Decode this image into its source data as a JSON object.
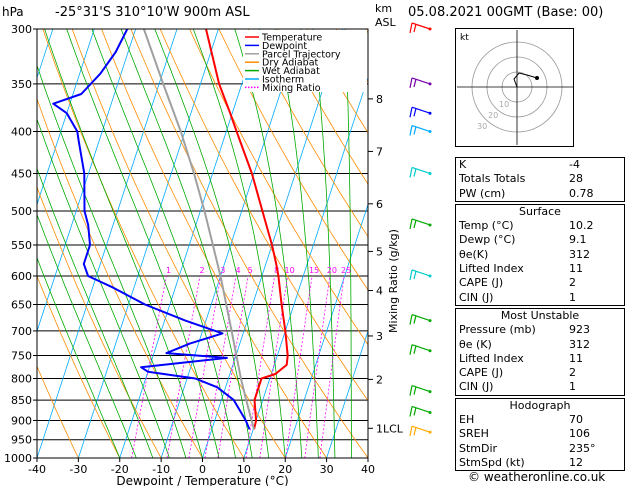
{
  "header": {
    "hpa_label": "hPa",
    "location": "-25°31'S 310°10'W 900m ASL",
    "km_label": "km",
    "asl_label": "ASL",
    "datetime": "05.08.2021 00GMT (Base: 00)"
  },
  "chart_data": {
    "type": "skew-t",
    "xlabel": "Dewpoint / Temperature (°C)",
    "ylabel": "hPa",
    "mixing_ratio_axis_label": "Mixing Ratio (g/kg)",
    "x_ticks": [
      -40,
      -30,
      -20,
      -10,
      0,
      10,
      20,
      30,
      40
    ],
    "xlim": [
      -40,
      40
    ],
    "pressure_levels": [
      300,
      350,
      400,
      450,
      500,
      550,
      600,
      650,
      700,
      750,
      800,
      850,
      900,
      950,
      1000
    ],
    "ylim": [
      300,
      1000
    ],
    "km_ticks": [
      {
        "label": "8",
        "p": 365
      },
      {
        "label": "7",
        "p": 423
      },
      {
        "label": "6",
        "p": 490
      },
      {
        "label": "5",
        "p": 560
      },
      {
        "label": "4",
        "p": 625
      },
      {
        "label": "3",
        "p": 710
      },
      {
        "label": "2",
        "p": 802
      },
      {
        "label": "1LCL",
        "p": 920
      }
    ],
    "mixing_ratio_labels": [
      "1",
      "2",
      "3",
      "4",
      "5",
      "8",
      "10",
      "15",
      "20",
      "25"
    ],
    "mixing_ratio_values": [
      1,
      2,
      3,
      4,
      5,
      8,
      10,
      15,
      20,
      25
    ],
    "legend": [
      {
        "label": "Temperature",
        "color": "#ff0000",
        "style": "solid"
      },
      {
        "label": "Dewpoint",
        "color": "#0000ff",
        "style": "solid"
      },
      {
        "label": "Parcel Trajectory",
        "color": "#a0a0a0",
        "style": "solid"
      },
      {
        "label": "Dry Adiabat",
        "color": "#ff8c00",
        "style": "solid"
      },
      {
        "label": "Wet Adiabat",
        "color": "#00aa00",
        "style": "solid"
      },
      {
        "label": "Isotherm",
        "color": "#00aaff",
        "style": "solid"
      },
      {
        "label": "Mixing Ratio",
        "color": "#ff00ff",
        "style": "dotted"
      }
    ],
    "series": [
      {
        "name": "Temperature",
        "color": "#ff0000",
        "points": [
          [
            923,
            10.2
          ],
          [
            900,
            10.0
          ],
          [
            850,
            8.0
          ],
          [
            800,
            8.0
          ],
          [
            790,
            11.0
          ],
          [
            770,
            13.0
          ],
          [
            750,
            12.5
          ],
          [
            700,
            10.0
          ],
          [
            650,
            7.0
          ],
          [
            600,
            4.0
          ],
          [
            580,
            2.5
          ],
          [
            550,
            0.0
          ],
          [
            500,
            -5.0
          ],
          [
            450,
            -10.5
          ],
          [
            400,
            -17.5
          ],
          [
            380,
            -20.5
          ],
          [
            350,
            -25.5
          ],
          [
            300,
            -33.0
          ]
        ]
      },
      {
        "name": "Dewpoint",
        "color": "#0000ff",
        "points": [
          [
            923,
            9.1
          ],
          [
            900,
            7.5
          ],
          [
            850,
            3.0
          ],
          [
            820,
            -2.0
          ],
          [
            800,
            -8.0
          ],
          [
            785,
            -20.0
          ],
          [
            775,
            -22.0
          ],
          [
            755,
            -2.0
          ],
          [
            745,
            -17.0
          ],
          [
            725,
            -12.0
          ],
          [
            705,
            -5.0
          ],
          [
            680,
            -15.0
          ],
          [
            650,
            -26.0
          ],
          [
            620,
            -35.0
          ],
          [
            600,
            -42.0
          ],
          [
            580,
            -44.0
          ],
          [
            550,
            -44.0
          ],
          [
            520,
            -46.0
          ],
          [
            500,
            -48.0
          ],
          [
            450,
            -51.0
          ],
          [
            410,
            -55.0
          ],
          [
            400,
            -56.0
          ],
          [
            380,
            -60.0
          ],
          [
            370,
            -64.0
          ],
          [
            360,
            -58.0
          ],
          [
            340,
            -55.0
          ],
          [
            320,
            -53.0
          ],
          [
            300,
            -52.0
          ]
        ]
      },
      {
        "name": "Parcel Trajectory",
        "color": "#a0a0a0",
        "points": [
          [
            923,
            10.2
          ],
          [
            850,
            6.0
          ],
          [
            800,
            3.0
          ],
          [
            700,
            -3.0
          ],
          [
            600,
            -10.0
          ],
          [
            500,
            -19.0
          ],
          [
            450,
            -24.5
          ],
          [
            400,
            -31.0
          ],
          [
            350,
            -39.0
          ],
          [
            300,
            -48.0
          ]
        ]
      }
    ]
  },
  "indices": {
    "rows": [
      {
        "label": "K",
        "value": "-4"
      },
      {
        "label": "Totals Totals",
        "value": "28"
      },
      {
        "label": "PW (cm)",
        "value": "0.78"
      }
    ]
  },
  "surface": {
    "title": "Surface",
    "rows": [
      {
        "label": "Temp (°C)",
        "value": "10.2"
      },
      {
        "label": "Dewp (°C)",
        "value": "9.1"
      },
      {
        "label": "θe(K)",
        "value": "312"
      },
      {
        "label": "Lifted Index",
        "value": "11"
      },
      {
        "label": "CAPE (J)",
        "value": "2"
      },
      {
        "label": "CIN (J)",
        "value": "1"
      }
    ]
  },
  "most_unstable": {
    "title": "Most Unstable",
    "rows": [
      {
        "label": "Pressure (mb)",
        "value": "923"
      },
      {
        "label": "θe (K)",
        "value": "312"
      },
      {
        "label": "Lifted Index",
        "value": "11"
      },
      {
        "label": "CAPE (J)",
        "value": "2"
      },
      {
        "label": "CIN (J)",
        "value": "1"
      }
    ]
  },
  "hodograph": {
    "title": "Hodograph",
    "rows": [
      {
        "label": "EH",
        "value": "70"
      },
      {
        "label": "SREH",
        "value": "106"
      },
      {
        "label": "StmDir",
        "value": "235°"
      },
      {
        "label": "StmSpd (kt)",
        "value": "12"
      }
    ]
  },
  "hodograph_plot": {
    "unit_label": "kt",
    "ring_labels": [
      "10",
      "20",
      "30"
    ]
  },
  "credit": "© weatheronline.co.uk"
}
